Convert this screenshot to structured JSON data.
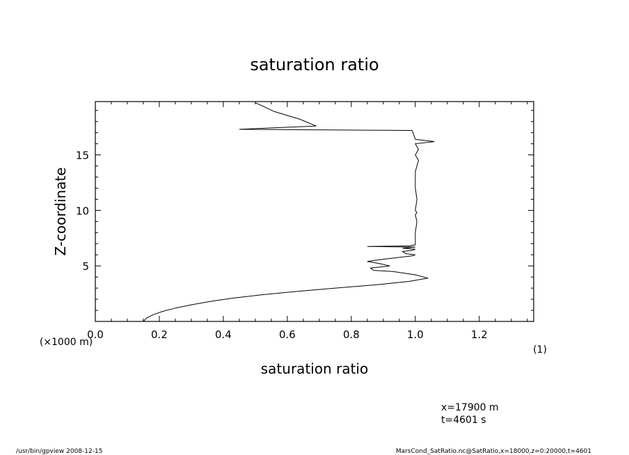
{
  "chart_data": {
    "type": "line",
    "title": "saturation ratio",
    "xlabel": "saturation ratio",
    "x_unit": "(1)",
    "ylabel": "Z-coordinate",
    "y_unit": "(×1000 m)",
    "xlim": [
      0.0,
      1.37
    ],
    "ylim": [
      0.0,
      19.8
    ],
    "x_ticks": [
      0.0,
      0.2,
      0.4,
      0.6,
      0.8,
      1.0,
      1.2
    ],
    "x_tick_labels": [
      "0.0",
      "0.2",
      "0.4",
      "0.6",
      "0.8",
      "1.0",
      "1.2"
    ],
    "y_ticks": [
      5,
      10,
      15
    ],
    "y_tick_labels": [
      "5",
      "10",
      "15"
    ],
    "grid": false,
    "series": [
      {
        "x": [
          0.15,
          0.16,
          0.18,
          0.21,
          0.25,
          0.3,
          0.36,
          0.43,
          0.52,
          0.63,
          0.75,
          0.88,
          0.98,
          1.04,
          1.0,
          0.93,
          0.87,
          0.86,
          0.92,
          0.89,
          0.85,
          0.9,
          0.96,
          0.99,
          1.0,
          0.97,
          0.96,
          0.99,
          1.0,
          0.96,
          1.0,
          0.85,
          0.98,
          1.0,
          1.0,
          1.005,
          1.0,
          1.005,
          1.0,
          1.005,
          1.0,
          1.0,
          1.01,
          1.0,
          1.01,
          1.0,
          1.06,
          1.0,
          0.99,
          0.45,
          0.57,
          0.69,
          0.64,
          0.56,
          0.5
        ],
        "y": [
          0.0,
          0.3,
          0.6,
          0.9,
          1.2,
          1.5,
          1.8,
          2.1,
          2.4,
          2.7,
          3.0,
          3.3,
          3.6,
          3.9,
          4.2,
          4.5,
          4.6,
          4.8,
          5.0,
          5.2,
          5.4,
          5.6,
          5.8,
          5.9,
          6.0,
          6.1,
          6.3,
          6.4,
          6.5,
          6.6,
          6.7,
          6.75,
          6.8,
          6.9,
          8.0,
          9.0,
          9.6,
          9.8,
          10.0,
          11.0,
          12.0,
          13.5,
          14.5,
          15.0,
          15.5,
          16.0,
          16.2,
          16.4,
          17.2,
          17.3,
          17.45,
          17.6,
          18.2,
          18.9,
          19.7
        ]
      }
    ]
  },
  "annotations": {
    "position_x": "x=17900 m",
    "time": "t=4601 s"
  },
  "footer": {
    "left": "/usr/bin/gpview   2008-12-15",
    "right": "MarsCond_SatRatio.nc@SatRatio,x=18000,z=0:20000,t=4601"
  }
}
